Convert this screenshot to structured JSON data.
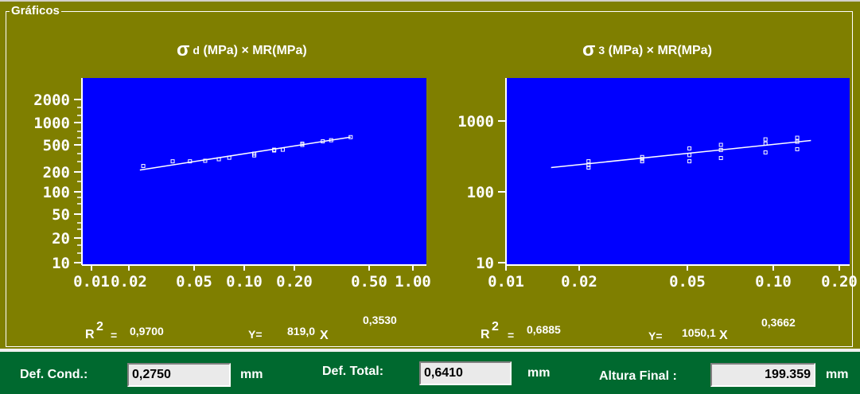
{
  "group_title": "Gráficos",
  "charts": [
    {
      "title_symbol": "σ",
      "title_sub": "d",
      "title_rest": "(MPa) × MR(MPa)",
      "x_ticks": [
        "0.01",
        "0.02",
        "0.05",
        "0.10",
        "0.20",
        "0.50",
        "1.00"
      ],
      "y_ticks": [
        "2000",
        "1000",
        "500",
        "200",
        "100",
        "50",
        "20",
        "10"
      ],
      "r2_label": "R",
      "r2_sup": "2",
      "r2_eq": "=",
      "r2_value": "0,9700",
      "y_label": "Y=",
      "coef": "819,0",
      "x_symbol": "X",
      "exponent": "0,3530"
    },
    {
      "title_symbol": "σ",
      "title_sub": "3",
      "title_rest": "(MPa) × MR(MPa)",
      "x_ticks": [
        "0.01",
        "0.02",
        "0.05",
        "0.10",
        "0.20"
      ],
      "y_ticks": [
        "1000",
        "100",
        "10"
      ],
      "r2_label": "R",
      "r2_sup": "2",
      "r2_eq": "=",
      "r2_value": "0,6885",
      "y_label": "Y=",
      "coef": "1050,1",
      "x_symbol": "X",
      "exponent": "0,3662"
    }
  ],
  "chart_data": [
    {
      "type": "scatter",
      "x_scale": "log",
      "y_scale": "log",
      "xlim": [
        0.01,
        1.0
      ],
      "ylim": [
        10,
        2000
      ],
      "grid": false,
      "background": "#0000ff",
      "marker_color": "#ffffff",
      "points": [
        [
          0.021,
          240
        ],
        [
          0.032,
          280
        ],
        [
          0.041,
          280
        ],
        [
          0.051,
          285
        ],
        [
          0.062,
          300
        ],
        [
          0.072,
          315
        ],
        [
          0.103,
          360
        ],
        [
          0.103,
          340
        ],
        [
          0.137,
          400
        ],
        [
          0.137,
          410
        ],
        [
          0.155,
          410
        ],
        [
          0.205,
          480
        ],
        [
          0.205,
          500
        ],
        [
          0.275,
          540
        ],
        [
          0.31,
          560
        ],
        [
          0.41,
          620
        ]
      ],
      "fit_line": {
        "x": [
          0.02,
          0.41
        ],
        "y": [
          210,
          620
        ]
      }
    },
    {
      "type": "scatter",
      "x_scale": "log",
      "y_scale": "log",
      "xlim": [
        0.01,
        0.2
      ],
      "ylim": [
        10,
        2000
      ],
      "grid": false,
      "background": "#0000ff",
      "marker_color": "#ffffff",
      "points": [
        [
          0.021,
          270
        ],
        [
          0.021,
          240
        ],
        [
          0.021,
          220
        ],
        [
          0.034,
          310
        ],
        [
          0.034,
          290
        ],
        [
          0.034,
          270
        ],
        [
          0.052,
          410
        ],
        [
          0.052,
          330
        ],
        [
          0.052,
          270
        ],
        [
          0.069,
          460
        ],
        [
          0.069,
          390
        ],
        [
          0.069,
          300
        ],
        [
          0.103,
          550
        ],
        [
          0.103,
          480
        ],
        [
          0.103,
          360
        ],
        [
          0.137,
          580
        ],
        [
          0.137,
          510
        ],
        [
          0.137,
          400
        ]
      ],
      "fit_line": {
        "x": [
          0.015,
          0.155
        ],
        "y": [
          220,
          530
        ]
      }
    }
  ],
  "footer": {
    "def_cond_label": "Def. Cond.:",
    "def_cond_value": "0,2750",
    "def_cond_unit": "mm",
    "def_total_label": "Def. Total:",
    "def_total_value": "0,6410",
    "def_total_unit": "mm",
    "altura_label": "Altura Final :",
    "altura_value": "199.359",
    "altura_unit": "mm"
  }
}
